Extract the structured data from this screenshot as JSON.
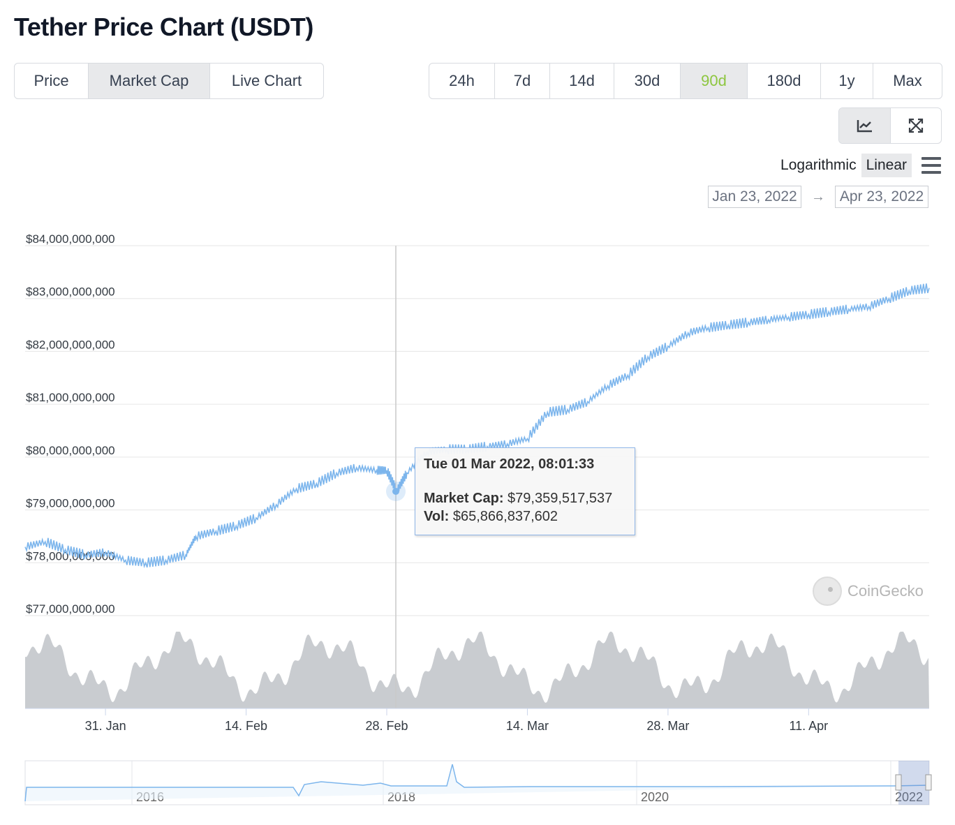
{
  "page": {
    "title": "Tether Price Chart (USDT)"
  },
  "view_tabs": [
    {
      "label": "Price",
      "active": false
    },
    {
      "label": "Market Cap",
      "active": true
    },
    {
      "label": "Live Chart",
      "active": false
    }
  ],
  "range_tabs": [
    {
      "label": "24h",
      "active": false
    },
    {
      "label": "7d",
      "active": false
    },
    {
      "label": "14d",
      "active": false
    },
    {
      "label": "30d",
      "active": false
    },
    {
      "label": "90d",
      "active": true
    },
    {
      "label": "180d",
      "active": false
    },
    {
      "label": "1y",
      "active": false
    },
    {
      "label": "Max",
      "active": false
    }
  ],
  "tools": [
    {
      "name": "line-chart-icon",
      "active": true
    },
    {
      "name": "fullscreen-icon",
      "active": false
    }
  ],
  "scale": {
    "options": [
      "Logarithmic",
      "Linear"
    ],
    "active": "Linear"
  },
  "date_range": {
    "from": "Jan 23, 2022",
    "to": "Apr 23, 2022",
    "arrow": "→"
  },
  "tooltip": {
    "header": "Tue 01 Mar 2022, 08:01:33",
    "market_cap_label": "Market Cap:",
    "market_cap_value": "$79,359,517,537",
    "vol_label": "Vol:",
    "vol_value": "$65,866,837,602"
  },
  "watermark": "CoinGecko",
  "colors": {
    "line": "#7cb5ec",
    "volume": "#bfc3c8",
    "active_range": "#8dc63f",
    "grid": "#e6e6e6"
  },
  "chart_data": {
    "type": "line",
    "y_axis": {
      "ticks": [
        "$84,000,000,000",
        "$83,000,000,000",
        "$82,000,000,000",
        "$81,000,000,000",
        "$80,000,000,000",
        "$79,000,000,000",
        "$78,000,000,000",
        "$77,000,000,000"
      ],
      "range": [
        77000000000,
        84000000000
      ],
      "scale": "linear"
    },
    "x_axis": {
      "ticks": [
        "31. Jan",
        "14. Feb",
        "28. Feb",
        "14. Mar",
        "28. Mar",
        "11. Apr"
      ],
      "range": [
        "2022-01-23",
        "2022-04-23"
      ]
    },
    "grid": true,
    "series": [
      {
        "x": [
          "2022-01-23",
          "2022-01-25",
          "2022-01-27",
          "2022-01-29",
          "2022-01-31",
          "2022-02-02",
          "2022-02-04",
          "2022-02-06",
          "2022-02-08",
          "2022-02-09",
          "2022-02-11",
          "2022-02-13",
          "2022-02-15",
          "2022-02-17",
          "2022-02-19",
          "2022-02-21",
          "2022-02-23",
          "2022-02-25",
          "2022-02-27",
          "2022-02-28",
          "2022-03-01",
          "2022-03-02",
          "2022-03-04",
          "2022-03-06",
          "2022-03-08",
          "2022-03-10",
          "2022-03-12",
          "2022-03-14",
          "2022-03-16",
          "2022-03-18",
          "2022-03-20",
          "2022-03-22",
          "2022-03-24",
          "2022-03-26",
          "2022-03-28",
          "2022-03-30",
          "2022-04-01",
          "2022-04-03",
          "2022-04-05",
          "2022-04-07",
          "2022-04-09",
          "2022-04-11",
          "2022-04-13",
          "2022-04-15",
          "2022-04-17",
          "2022-04-19",
          "2022-04-21",
          "2022-04-23"
        ],
        "values": [
          78300000000,
          78400000000,
          78250000000,
          78150000000,
          78200000000,
          78050000000,
          78000000000,
          78050000000,
          78150000000,
          78500000000,
          78600000000,
          78700000000,
          78850000000,
          79100000000,
          79400000000,
          79500000000,
          79700000000,
          79800000000,
          79750000000,
          79750000000,
          79359517537,
          79700000000,
          80100000000,
          80150000000,
          80150000000,
          80200000000,
          80250000000,
          80350000000,
          80850000000,
          80900000000,
          81050000000,
          81350000000,
          81550000000,
          81900000000,
          82100000000,
          82350000000,
          82450000000,
          82500000000,
          82550000000,
          82600000000,
          82650000000,
          82700000000,
          82750000000,
          82800000000,
          82850000000,
          83000000000,
          83150000000,
          83200000000
        ]
      }
    ],
    "volume_label": "Vol",
    "navigator": {
      "ticks": [
        "2016",
        "2018",
        "2020",
        "2022"
      ]
    }
  }
}
